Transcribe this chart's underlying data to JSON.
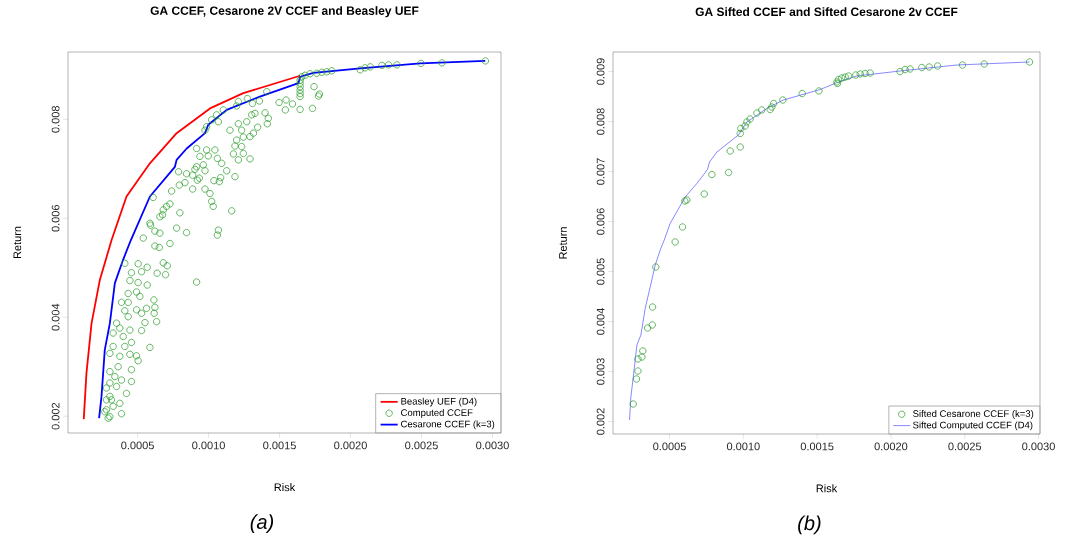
{
  "chart_data": [
    {
      "type": "scatter",
      "title": "GA CCEF, Cesarone 2V CCEF and Beasley UEF",
      "xlabel": "Risk",
      "ylabel": "Return",
      "annotations": [
        "(a)"
      ],
      "xlim": [
        1e-05,
        0.00306
      ],
      "ylim": [
        0.00166,
        0.00936
      ],
      "xticks": [
        0.0005,
        {
          "value": 0.001,
          "label": "0.0010"
        },
        0.0015,
        {
          "value": 0.002,
          "label": "0.0020"
        },
        0.0025,
        {
          "value": 0.003,
          "label": "0.0030"
        }
      ],
      "yticks": [
        0.002,
        0.004,
        0.006,
        0.008
      ],
      "legend": "bottom right",
      "series": [
        {
          "name": "Beasley UEF (D4)",
          "type": "line",
          "color": "#ff0000",
          "x": [
            0.000121,
            0.00014,
            0.000176,
            0.000234,
            0.000317,
            0.000422,
            0.000587,
            0.000775,
            0.00101,
            0.001245,
            0.001645
          ],
          "values": [
            0.00194,
            0.00287,
            0.00388,
            0.00475,
            0.00556,
            0.00644,
            0.00711,
            0.00772,
            0.00822,
            0.00853,
            0.00888
          ]
        },
        {
          "name": "Computed CCEF",
          "type": "scatter",
          "marker": "circle",
          "color": "#229922",
          "x": [
            0.00295,
            0.002644,
            0.002496,
            0.002327,
            0.002268,
            0.002221,
            0.002139,
            0.002103,
            0.002068,
            0.001868,
            0.001833,
            0.001798,
            0.001762,
            0.001715,
            0.00168,
            0.001657,
            0.001645,
            0.001645,
            0.001645,
            0.001645,
            0.001645,
            0.001645,
            0.001743,
            0.001781,
            0.001774,
            0.001732,
            0.001645,
            0.001591,
            0.001546,
            0.001541,
            0.001497,
            0.00141,
            0.001358,
            0.001309,
            0.001273,
            0.00121,
            0.001198,
            0.001104,
            0.001057,
            0.001022,
            0.000986,
            0.000975,
            0.001069,
            0.001151,
            0.00121,
            0.001233,
            0.001269,
            0.001304,
            0.001327,
            0.001398,
            0.001421,
            0.001414,
            0.001346,
            0.001316,
            0.001292,
            0.001245,
            0.001198,
            0.001186,
            0.001233,
            0.001245,
            0.001175,
            0.00121,
            0.001292,
            0.001128,
            0.001092,
            0.001062,
            0.001045,
            0.000986,
            0.000998,
            0.000939,
            0.000916,
            0.000916,
            0.000963,
            0.000975,
            0.000904,
            0.000888,
            0.000845,
            0.000935,
            0.000921,
            0.001038,
            0.001076,
            0.001085,
            0.001186,
            0.000789,
            0.000834,
            0.000794,
            0.000888,
            0.000975,
            0.00101,
            0.001022,
            0.001033,
            0.001163,
            0.00074,
            0.00061,
            0.000728,
            0.000704,
            0.000681,
            0.000676,
            0.000657,
            0.000798,
            0.000775,
            0.000845,
            0.000587,
            0.000591,
            0.000622,
            0.000657,
            0.00054,
            0.001069,
            0.001062,
            0.000728,
            0.000622,
            0.000653,
            0.00041,
            0.000504,
            0.000568,
            0.000681,
            0.000709,
            0.000528,
            0.000457,
            0.000638,
            0.000697,
            0.000916,
            0.000504,
            0.000568,
            0.000446,
            0.000434,
            0.000493,
            0.000516,
            0.000387,
            0.000434,
            0.000615,
            0.00041,
            0.000493,
            0.000563,
            0.000622,
            0.000617,
            0.000434,
            0.000528,
            0.000634,
            0.000352,
            0.000552,
            0.000375,
            0.000446,
            0.000528,
            0.000328,
            0.000399,
            0.000457,
            0.000328,
            0.000587,
            0.00041,
            0.000375,
            0.000446,
            0.000305,
            0.000493,
            0.000504,
            0.000363,
            0.000457,
            0.000305,
            0.00034,
            0.000387,
            0.000457,
            0.000305,
            0.000352,
            0.000281,
            0.000422,
            0.000305,
            0.000375,
            0.000281,
            0.000328,
            0.000281,
            0.000387,
            0.000305,
            0.000293,
            0.000269,
            0.000316
          ],
          "values": [
            0.00918,
            0.00914,
            0.00913,
            0.0091,
            0.0091,
            0.00909,
            0.00906,
            0.00904,
            0.009,
            0.00898,
            0.00896,
            0.00895,
            0.00893,
            0.00892,
            0.00889,
            0.00886,
            0.00879,
            0.00873,
            0.00866,
            0.00859,
            0.00852,
            0.00846,
            0.00866,
            0.00851,
            0.00847,
            0.00822,
            0.0082,
            0.00831,
            0.00839,
            0.00819,
            0.00834,
            0.00856,
            0.00837,
            0.00832,
            0.00842,
            0.00836,
            0.00827,
            0.00819,
            0.00809,
            0.00799,
            0.00785,
            0.00778,
            0.00795,
            0.00778,
            0.00791,
            0.00778,
            0.00795,
            0.00809,
            0.00812,
            0.00813,
            0.00802,
            0.00791,
            0.00784,
            0.00772,
            0.00765,
            0.00764,
            0.00758,
            0.00746,
            0.00745,
            0.00731,
            0.0073,
            0.00718,
            0.0072,
            0.00696,
            0.00711,
            0.00721,
            0.00738,
            0.00738,
            0.00726,
            0.00725,
            0.00741,
            0.00704,
            0.00708,
            0.00696,
            0.00699,
            0.00687,
            0.0069,
            0.00681,
            0.00677,
            0.00676,
            0.00674,
            0.00682,
            0.00684,
            0.00694,
            0.00672,
            0.00667,
            0.00659,
            0.00659,
            0.0065,
            0.00634,
            0.00624,
            0.00615,
            0.00655,
            0.00642,
            0.00629,
            0.00624,
            0.00617,
            0.00607,
            0.00603,
            0.00611,
            0.0058,
            0.00571,
            0.0059,
            0.00586,
            0.00574,
            0.0057,
            0.0056,
            0.00576,
            0.00566,
            0.00549,
            0.00544,
            0.00541,
            0.00509,
            0.00508,
            0.00501,
            0.0051,
            0.00504,
            0.00492,
            0.0049,
            0.00489,
            0.00486,
            0.00471,
            0.0047,
            0.00465,
            0.00474,
            0.00448,
            0.00451,
            0.00442,
            0.0043,
            0.0043,
            0.00435,
            0.00413,
            0.00415,
            0.00418,
            0.0042,
            0.00408,
            0.00401,
            0.00408,
            0.00391,
            0.00388,
            0.00389,
            0.00378,
            0.00374,
            0.00373,
            0.00368,
            0.00361,
            0.00349,
            0.00341,
            0.00339,
            0.00341,
            0.00321,
            0.00325,
            0.00327,
            0.00322,
            0.00312,
            0.003,
            0.00294,
            0.0029,
            0.0028,
            0.00273,
            0.0027,
            0.00267,
            0.0026,
            0.00257,
            0.00246,
            0.0024,
            0.00226,
            0.00233,
            0.0022,
            0.00213,
            0.00205,
            0.00199,
            0.00196,
            0.00209,
            0.00233
          ]
        },
        {
          "name": "Cesarone CCEF (k=3)",
          "type": "line",
          "color": "#0000ff",
          "x": [
            0.000229,
            0.000246,
            0.000269,
            0.000305,
            0.00034,
            0.000398,
            0.000453,
            0.000587,
            0.000763,
            0.000775,
            0.000846,
            0.000975,
            0.000998,
            0.001128,
            0.001362,
            0.001633,
            0.001645,
            0.001738,
            0.002068,
            0.002491,
            0.002949
          ],
          "values": [
            0.00196,
            0.0024,
            0.00334,
            0.00388,
            0.00469,
            0.00516,
            0.00556,
            0.00644,
            0.00704,
            0.00718,
            0.00741,
            0.00772,
            0.00789,
            0.00819,
            0.00846,
            0.00873,
            0.00886,
            0.00894,
            0.00903,
            0.00913,
            0.00918
          ]
        }
      ]
    },
    {
      "type": "scatter",
      "title": "GA Sifted CCEF and Sifted Cesarone 2v CCEF",
      "xlabel": "Risk",
      "ylabel": "Return",
      "annotations": [
        "(b)"
      ],
      "xlim": [
        0.000117,
        0.00301
      ],
      "ylim": [
        0.00175,
        0.00939
      ],
      "xticks": [
        0.0005,
        {
          "value": 0.001,
          "label": "0.0010"
        },
        0.0015,
        {
          "value": 0.002,
          "label": "0.0020"
        },
        0.0025,
        {
          "value": 0.003,
          "label": "0.0030"
        }
      ],
      "yticks": [
        0.002,
        0.003,
        0.004,
        0.005,
        0.006,
        0.007,
        0.008,
        0.009
      ],
      "legend": "bottom right",
      "series": [
        {
          "name": "Sifted Cesarone CCEF (k=3)",
          "type": "scatter",
          "marker": "circle",
          "color": "#229922",
          "x": [
            0.002939,
            0.002632,
            0.002485,
            0.002316,
            0.002259,
            0.002209,
            0.00213,
            0.002096,
            0.002062,
            0.001859,
            0.001825,
            0.001792,
            0.001762,
            0.001713,
            0.00169,
            0.001667,
            0.001645,
            0.001634,
            0.001638,
            0.001512,
            0.001399,
            0.001268,
            0.001205,
            0.001193,
            0.001182,
            0.001125,
            0.001092,
            0.001046,
            0.001024,
            0.001012,
            0.000983,
            0.000979,
            0.000979,
            0.000911,
            0.0009,
            0.000787,
            0.000735,
            0.000617,
            0.000604,
            0.000588,
            0.000538,
            0.000407,
            0.000385,
            0.000383,
            0.000351,
            0.000319,
            0.000313,
            0.000286,
            0.000286,
            0.000276,
            0.000254
          ],
          "values": [
            0.00919,
            0.00915,
            0.00913,
            0.00911,
            0.00909,
            0.00908,
            0.00905,
            0.00904,
            0.009,
            0.00897,
            0.00896,
            0.00895,
            0.00893,
            0.00891,
            0.00889,
            0.00887,
            0.00884,
            0.00879,
            0.00876,
            0.00861,
            0.00856,
            0.00843,
            0.00836,
            0.00829,
            0.00824,
            0.00823,
            0.00817,
            0.00805,
            0.00799,
            0.00791,
            0.00786,
            0.00776,
            0.00749,
            0.00741,
            0.00698,
            0.00694,
            0.00655,
            0.00643,
            0.00641,
            0.00589,
            0.00559,
            0.00509,
            0.00429,
            0.00393,
            0.00387,
            0.00341,
            0.00329,
            0.00325,
            0.00301,
            0.00285,
            0.00235
          ]
        },
        {
          "name": "Sifted Computed CCEF (D4)",
          "type": "line",
          "color": "#5555ff",
          "x": [
            0.000229,
            0.000238,
            0.000252,
            0.000279,
            0.000306,
            0.000335,
            0.000369,
            0.000403,
            0.000437,
            0.000464,
            0.000504,
            0.000606,
            0.000685,
            0.000757,
            0.000771,
            0.000821,
            0.000967,
            0.001024,
            0.001159,
            0.001272,
            0.001521,
            0.001645,
            0.001769,
            0.002062,
            0.002447,
            0.002939
          ],
          "values": [
            0.00203,
            0.00249,
            0.00283,
            0.00353,
            0.00373,
            0.00426,
            0.00469,
            0.00513,
            0.00543,
            0.00563,
            0.00596,
            0.00649,
            0.00676,
            0.00704,
            0.00719,
            0.00739,
            0.00773,
            0.00799,
            0.00826,
            0.00843,
            0.00864,
            0.00879,
            0.00891,
            0.00901,
            0.00913,
            0.00919
          ]
        }
      ]
    }
  ]
}
